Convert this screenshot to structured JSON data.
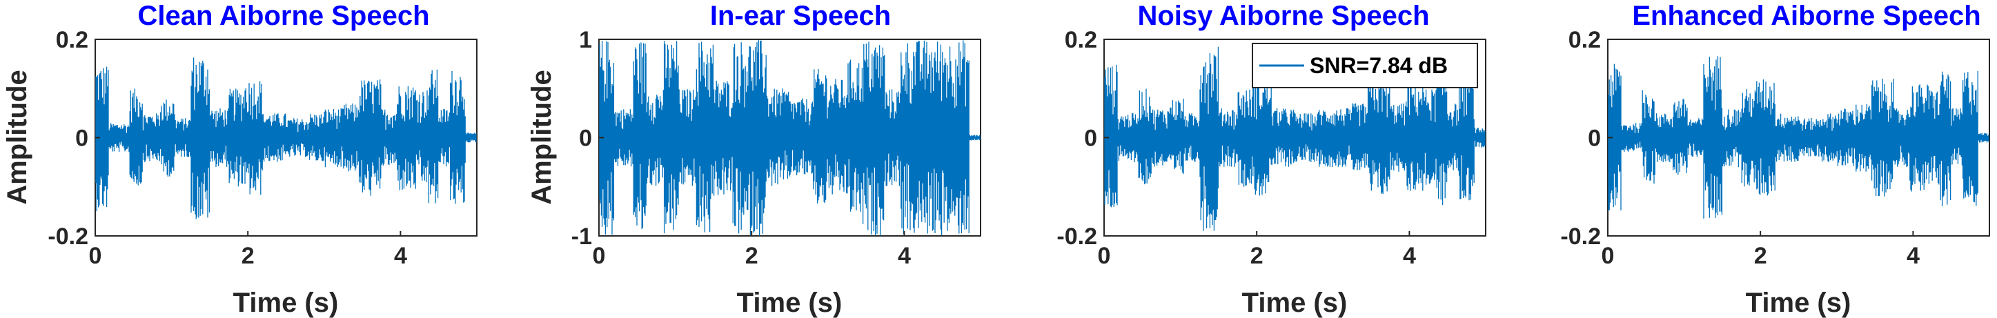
{
  "chart_data": [
    {
      "type": "line",
      "title": "Clean Aiborne Speech",
      "xlabel": "Time (s)",
      "ylabel": "Amplitude",
      "xlim": [
        0,
        5
      ],
      "ylim": [
        -0.2,
        0.2
      ],
      "xticks": [
        0,
        2,
        4
      ],
      "yticks": [
        -0.2,
        0,
        0.2
      ],
      "xtick_labels": [
        "0",
        "2",
        "4"
      ],
      "ytick_labels": [
        "-0.2",
        "0",
        "0.2"
      ],
      "series": [
        {
          "color": "#0072bd",
          "segments": [
            {
              "x": [
                0.0,
                0.18
              ],
              "amp": 0.15
            },
            {
              "x": [
                0.18,
                0.45
              ],
              "amp": 0.03
            },
            {
              "x": [
                0.45,
                0.62
              ],
              "amp": 0.1
            },
            {
              "x": [
                0.62,
                0.85
              ],
              "amp": 0.05
            },
            {
              "x": [
                0.85,
                1.05
              ],
              "amp": 0.08
            },
            {
              "x": [
                1.05,
                1.25
              ],
              "amp": 0.04
            },
            {
              "x": [
                1.25,
                1.5
              ],
              "amp": 0.17
            },
            {
              "x": [
                1.5,
                1.75
              ],
              "amp": 0.06
            },
            {
              "x": [
                1.75,
                1.95
              ],
              "amp": 0.1
            },
            {
              "x": [
                1.95,
                2.2
              ],
              "amp": 0.12
            },
            {
              "x": [
                2.2,
                2.5
              ],
              "amp": 0.05
            },
            {
              "x": [
                2.5,
                2.8
              ],
              "amp": 0.04
            },
            {
              "x": [
                2.8,
                3.0
              ],
              "amp": 0.05
            },
            {
              "x": [
                3.0,
                3.25
              ],
              "amp": 0.06
            },
            {
              "x": [
                3.25,
                3.45
              ],
              "amp": 0.07
            },
            {
              "x": [
                3.45,
                3.75
              ],
              "amp": 0.12
            },
            {
              "x": [
                3.75,
                3.95
              ],
              "amp": 0.06
            },
            {
              "x": [
                3.95,
                4.2
              ],
              "amp": 0.11
            },
            {
              "x": [
                4.2,
                4.35
              ],
              "amp": 0.1
            },
            {
              "x": [
                4.35,
                4.5
              ],
              "amp": 0.14
            },
            {
              "x": [
                4.5,
                4.65
              ],
              "amp": 0.06
            },
            {
              "x": [
                4.65,
                4.85
              ],
              "amp": 0.14
            },
            {
              "x": [
                4.85,
                5.0
              ],
              "amp": 0.01
            }
          ]
        }
      ]
    },
    {
      "type": "line",
      "title": "In-ear Speech",
      "xlabel": "Time (s)",
      "ylabel": "Amplitude",
      "xlim": [
        0,
        5
      ],
      "ylim": [
        -1,
        1
      ],
      "xticks": [
        0,
        2,
        4
      ],
      "yticks": [
        -1,
        0,
        1
      ],
      "xtick_labels": [
        "0",
        "2",
        "4"
      ],
      "ytick_labels": [
        "-1",
        "0",
        "1"
      ],
      "series": [
        {
          "color": "#0072bd",
          "segments": [
            {
              "x": [
                0.0,
                0.2
              ],
              "amp": 1.0
            },
            {
              "x": [
                0.2,
                0.45
              ],
              "amp": 0.3
            },
            {
              "x": [
                0.45,
                0.62
              ],
              "amp": 1.0
            },
            {
              "x": [
                0.62,
                0.85
              ],
              "amp": 0.5
            },
            {
              "x": [
                0.85,
                1.05
              ],
              "amp": 1.0
            },
            {
              "x": [
                1.05,
                1.25
              ],
              "amp": 0.5
            },
            {
              "x": [
                1.25,
                1.5
              ],
              "amp": 1.0
            },
            {
              "x": [
                1.5,
                1.75
              ],
              "amp": 0.6
            },
            {
              "x": [
                1.75,
                2.2
              ],
              "amp": 1.0
            },
            {
              "x": [
                2.2,
                2.5
              ],
              "amp": 0.5
            },
            {
              "x": [
                2.5,
                2.8
              ],
              "amp": 0.4
            },
            {
              "x": [
                2.8,
                3.0
              ],
              "amp": 0.7
            },
            {
              "x": [
                3.0,
                3.25
              ],
              "amp": 0.6
            },
            {
              "x": [
                3.25,
                3.45
              ],
              "amp": 0.8
            },
            {
              "x": [
                3.45,
                3.75
              ],
              "amp": 1.0
            },
            {
              "x": [
                3.75,
                3.95
              ],
              "amp": 0.5
            },
            {
              "x": [
                3.95,
                4.85
              ],
              "amp": 1.0
            },
            {
              "x": [
                4.85,
                5.0
              ],
              "amp": 0.03
            }
          ]
        }
      ]
    },
    {
      "type": "line",
      "title": "Noisy Aiborne Speech",
      "xlabel": "Time (s)",
      "ylabel": "",
      "xlim": [
        0,
        5
      ],
      "ylim": [
        -0.2,
        0.2
      ],
      "xticks": [
        0,
        2,
        4
      ],
      "yticks": [
        -0.2,
        0,
        0.2
      ],
      "xtick_labels": [
        "0",
        "2",
        "4"
      ],
      "ytick_labels": [
        "-0.2",
        "0",
        "0.2"
      ],
      "legend": {
        "entries": [
          "SNR=7.84 dB"
        ],
        "position": "top-right"
      },
      "series": [
        {
          "name": "SNR=7.84 dB",
          "color": "#0072bd",
          "segments": [
            {
              "x": [
                0.0,
                0.18
              ],
              "amp": 0.15
            },
            {
              "x": [
                0.18,
                0.45
              ],
              "amp": 0.05
            },
            {
              "x": [
                0.45,
                0.62
              ],
              "amp": 0.1
            },
            {
              "x": [
                0.62,
                0.85
              ],
              "amp": 0.06
            },
            {
              "x": [
                0.85,
                1.05
              ],
              "amp": 0.08
            },
            {
              "x": [
                1.05,
                1.25
              ],
              "amp": 0.05
            },
            {
              "x": [
                1.25,
                1.5
              ],
              "amp": 0.19
            },
            {
              "x": [
                1.5,
                1.75
              ],
              "amp": 0.06
            },
            {
              "x": [
                1.75,
                1.95
              ],
              "amp": 0.1
            },
            {
              "x": [
                1.95,
                2.2
              ],
              "amp": 0.12
            },
            {
              "x": [
                2.2,
                2.5
              ],
              "amp": 0.06
            },
            {
              "x": [
                2.5,
                2.8
              ],
              "amp": 0.05
            },
            {
              "x": [
                2.8,
                3.0
              ],
              "amp": 0.06
            },
            {
              "x": [
                3.0,
                3.25
              ],
              "amp": 0.06
            },
            {
              "x": [
                3.25,
                3.45
              ],
              "amp": 0.07
            },
            {
              "x": [
                3.45,
                3.75
              ],
              "amp": 0.12
            },
            {
              "x": [
                3.75,
                3.95
              ],
              "amp": 0.07
            },
            {
              "x": [
                3.95,
                4.2
              ],
              "amp": 0.11
            },
            {
              "x": [
                4.2,
                4.35
              ],
              "amp": 0.1
            },
            {
              "x": [
                4.35,
                4.5
              ],
              "amp": 0.14
            },
            {
              "x": [
                4.5,
                4.65
              ],
              "amp": 0.07
            },
            {
              "x": [
                4.65,
                4.85
              ],
              "amp": 0.13
            },
            {
              "x": [
                4.85,
                5.0
              ],
              "amp": 0.02
            }
          ]
        }
      ]
    },
    {
      "type": "line",
      "title": "Enhanced Aiborne Speech",
      "xlabel": "Time (s)",
      "ylabel": "",
      "xlim": [
        0,
        5
      ],
      "ylim": [
        -0.2,
        0.2
      ],
      "xticks": [
        0,
        2,
        4
      ],
      "yticks": [
        -0.2,
        0,
        0.2
      ],
      "xtick_labels": [
        "0",
        "2",
        "4"
      ],
      "ytick_labels": [
        "-0.2",
        "0",
        "0.2"
      ],
      "series": [
        {
          "color": "#0072bd",
          "segments": [
            {
              "x": [
                0.0,
                0.18
              ],
              "amp": 0.15
            },
            {
              "x": [
                0.18,
                0.45
              ],
              "amp": 0.03
            },
            {
              "x": [
                0.45,
                0.62
              ],
              "amp": 0.1
            },
            {
              "x": [
                0.62,
                0.85
              ],
              "amp": 0.05
            },
            {
              "x": [
                0.85,
                1.05
              ],
              "amp": 0.08
            },
            {
              "x": [
                1.05,
                1.25
              ],
              "amp": 0.04
            },
            {
              "x": [
                1.25,
                1.5
              ],
              "amp": 0.17
            },
            {
              "x": [
                1.5,
                1.75
              ],
              "amp": 0.06
            },
            {
              "x": [
                1.75,
                1.95
              ],
              "amp": 0.1
            },
            {
              "x": [
                1.95,
                2.2
              ],
              "amp": 0.12
            },
            {
              "x": [
                2.2,
                2.5
              ],
              "amp": 0.05
            },
            {
              "x": [
                2.5,
                2.8
              ],
              "amp": 0.04
            },
            {
              "x": [
                2.8,
                3.0
              ],
              "amp": 0.05
            },
            {
              "x": [
                3.0,
                3.25
              ],
              "amp": 0.06
            },
            {
              "x": [
                3.25,
                3.45
              ],
              "amp": 0.07
            },
            {
              "x": [
                3.45,
                3.75
              ],
              "amp": 0.12
            },
            {
              "x": [
                3.75,
                3.95
              ],
              "amp": 0.06
            },
            {
              "x": [
                3.95,
                4.2
              ],
              "amp": 0.11
            },
            {
              "x": [
                4.2,
                4.35
              ],
              "amp": 0.1
            },
            {
              "x": [
                4.35,
                4.5
              ],
              "amp": 0.14
            },
            {
              "x": [
                4.5,
                4.65
              ],
              "amp": 0.06
            },
            {
              "x": [
                4.65,
                4.85
              ],
              "amp": 0.14
            },
            {
              "x": [
                4.85,
                5.0
              ],
              "amp": 0.01
            }
          ]
        }
      ]
    }
  ]
}
